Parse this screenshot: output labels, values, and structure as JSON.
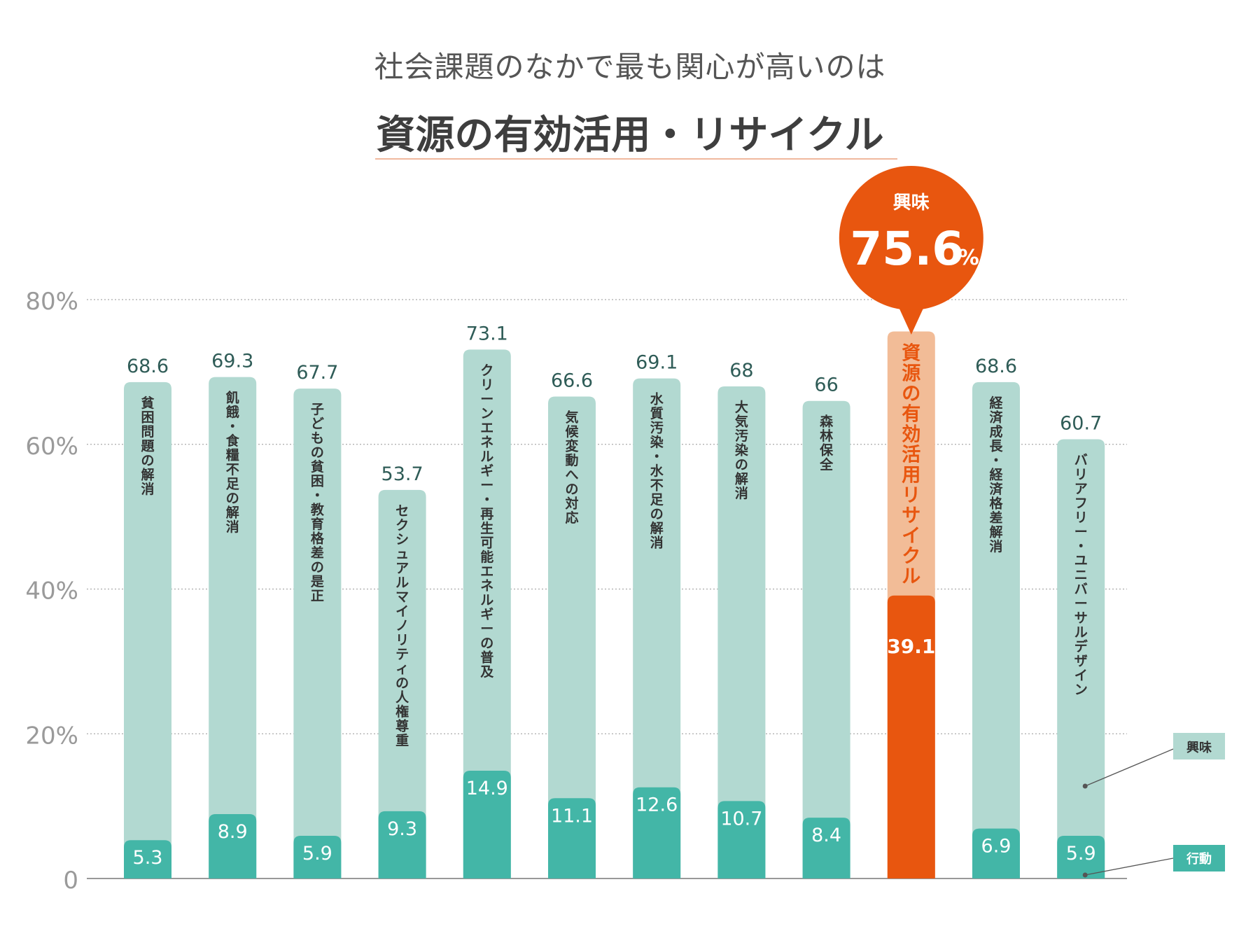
{
  "header": {
    "subtitle": "社会課題のなかで最も関心が高いのは",
    "title": "資源の有効活用・リサイクル"
  },
  "callout": {
    "label": "興味",
    "value": "75.6",
    "unit": "%"
  },
  "legend": {
    "interest": "興味",
    "action": "行動"
  },
  "colors": {
    "interest": "#b2d9d1",
    "action": "#43b6a7",
    "highlight_interest": "#f2bc97",
    "highlight_action": "#e8560f",
    "value_label": "#2f5c57",
    "grid": "#aaaaaa",
    "axis_label": "#9a9a9a"
  },
  "chart_data": {
    "type": "bar",
    "title": "資源の有効活用・リサイクル",
    "ylim": [
      0,
      80
    ],
    "yticks": [
      "0",
      "20%",
      "40%",
      "60%",
      "80%"
    ],
    "grid": true,
    "legend_position": "bottom-right",
    "highlight_index": 9,
    "categories": [
      "貧困問題の解消",
      "飢餓・食糧不足の解消",
      "子どもの貧困・教育格差の是正",
      "セクシュアルマイノリティの人権尊重",
      "クリーンエネルギー・再生可能エネルギーの普及",
      "気候変動への対応",
      "水質汚染・水不足の解消",
      "大気汚染の解消",
      "森林保全",
      "資源の有効活用リサイクル",
      "経済成長・経済格差解消",
      "バリアフリー・ユニバーサルデザイン"
    ],
    "series": [
      {
        "name": "興味",
        "values": [
          68.6,
          69.3,
          67.7,
          53.7,
          73.1,
          66.6,
          69.1,
          68,
          66,
          75.6,
          68.6,
          60.7
        ],
        "labels": [
          "68.6",
          "69.3",
          "67.7",
          "53.7",
          "73.1",
          "66.6",
          "69.1",
          "68",
          "66",
          "75.6",
          "68.6",
          "60.7"
        ]
      },
      {
        "name": "行動",
        "values": [
          5.3,
          8.9,
          5.9,
          9.3,
          14.9,
          11.1,
          12.6,
          10.7,
          8.4,
          39.1,
          6.9,
          5.9
        ],
        "labels": [
          "5.3",
          "8.9",
          "5.9",
          "9.3",
          "14.9",
          "11.1",
          "12.6",
          "10.7",
          "8.4",
          "39.1",
          "6.9",
          "5.9"
        ]
      }
    ]
  }
}
